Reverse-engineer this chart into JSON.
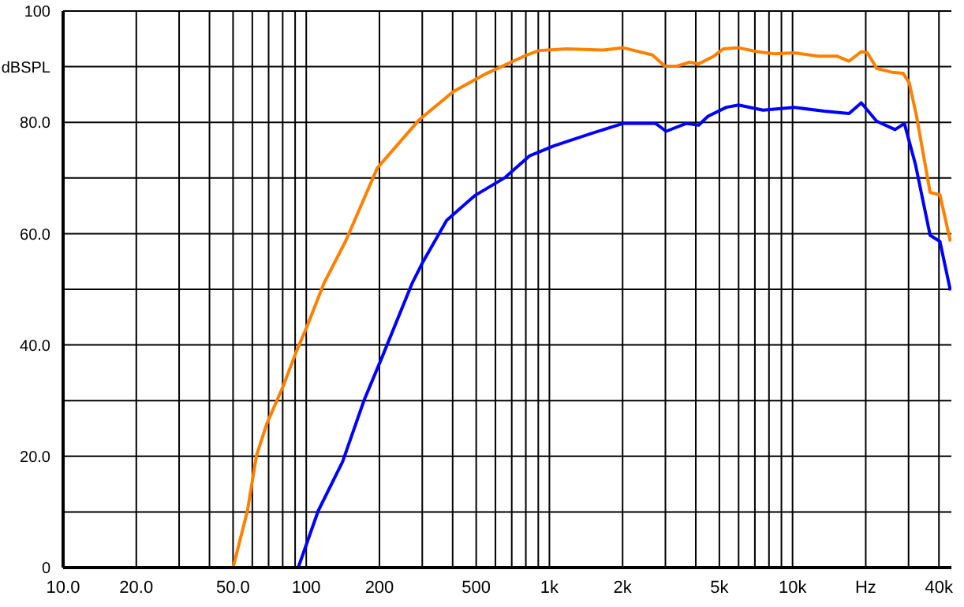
{
  "chart_data": {
    "type": "line",
    "log": "x",
    "grid": true,
    "legend": false,
    "marker": "none",
    "line_style": "solid",
    "xlim": [
      10,
      45000
    ],
    "ylim": [
      0,
      100
    ],
    "xticks": [
      {
        "value": 10,
        "label": "10.0"
      },
      {
        "value": 20,
        "label": "20.0"
      },
      {
        "value": 30,
        "label": null
      },
      {
        "value": 40,
        "label": null
      },
      {
        "value": 50,
        "label": "50.0"
      },
      {
        "value": 60,
        "label": null
      },
      {
        "value": 70,
        "label": null
      },
      {
        "value": 80,
        "label": null
      },
      {
        "value": 90,
        "label": null
      },
      100,
      200,
      {
        "value": 300,
        "label": null
      },
      {
        "value": 400,
        "label": null
      },
      500,
      {
        "value": 600,
        "label": null
      },
      {
        "value": 700,
        "label": null
      },
      {
        "value": 800,
        "label": null
      },
      {
        "value": 900,
        "label": null
      },
      {
        "value": 1000,
        "label": "1k"
      },
      {
        "value": 2000,
        "label": "2k"
      },
      {
        "value": 3000,
        "label": null
      },
      {
        "value": 4000,
        "label": null
      },
      {
        "value": 5000,
        "label": "5k"
      },
      {
        "value": 6000,
        "label": null
      },
      {
        "value": 7000,
        "label": null
      },
      {
        "value": 8000,
        "label": null
      },
      {
        "value": 9000,
        "label": null
      },
      {
        "value": 10000,
        "label": "10k"
      },
      {
        "value": 20000,
        "label": "Hz"
      },
      {
        "value": 30000,
        "label": null
      },
      {
        "value": 40000,
        "label": "40k"
      }
    ],
    "yticks": [
      0,
      {
        "value": 10,
        "label": null
      },
      {
        "value": 20,
        "label": "20.0"
      },
      {
        "value": 30,
        "label": null
      },
      {
        "value": 40,
        "label": "40.0"
      },
      {
        "value": 50,
        "label": null
      },
      {
        "value": 60,
        "label": "60.0"
      },
      {
        "value": 70,
        "label": null
      },
      {
        "value": 80,
        "label": "80.0"
      },
      {
        "value": 90,
        "label": "dBSPL"
      },
      100
    ],
    "series": [
      {
        "color": "#ff8000",
        "x": [
          50,
          57.3,
          62.4,
          68.9,
          80.2,
          91.2,
          100.7,
          118,
          145,
          196,
          292,
          402,
          552,
          807,
          905,
          1178,
          1667,
          2010,
          2655,
          2985,
          3350,
          3765,
          4110,
          4750,
          5190,
          6000,
          7140,
          8500,
          10120,
          12770,
          15200,
          17070,
          19170,
          20320,
          22180,
          25650,
          28500,
          30200,
          32360,
          36800,
          40370,
          44570
        ],
        "values": [
          0,
          10.2,
          20.1,
          25.9,
          32.5,
          38.9,
          43.3,
          51,
          58.6,
          71.8,
          80.5,
          85.5,
          88.8,
          92.1,
          92.9,
          93.2,
          93.0,
          93.4,
          92.1,
          90.1,
          90.1,
          90.8,
          90.5,
          91.9,
          93.2,
          93.4,
          92.7,
          92.3,
          92.5,
          91.9,
          91.9,
          91.0,
          92.7,
          92.5,
          89.7,
          89.0,
          88.8,
          87.1,
          81.1,
          67.4,
          67.0,
          58.6
        ]
      },
      {
        "color": "#0000ff",
        "x": [
          92.7,
          112,
          141,
          173,
          205,
          272,
          300,
          378,
          492,
          658,
          830,
          1047,
          1485,
          2010,
          2735,
          3020,
          3655,
          4110,
          4490,
          5340,
          6000,
          7570,
          10120,
          13520,
          17070,
          19170,
          22180,
          26400,
          28840,
          32000,
          36800,
          40370,
          44570
        ],
        "values": [
          0,
          10.2,
          19.0,
          30.1,
          37.8,
          51,
          54.7,
          62.4,
          66.8,
          70.1,
          74.0,
          75.8,
          78.0,
          79.8,
          79.8,
          78.4,
          79.8,
          79.5,
          81.1,
          82.7,
          83.1,
          82.2,
          82.7,
          82.0,
          81.6,
          83.5,
          80.2,
          78.7,
          79.8,
          72.5,
          59.7,
          58.6,
          49.8
        ]
      }
    ]
  }
}
